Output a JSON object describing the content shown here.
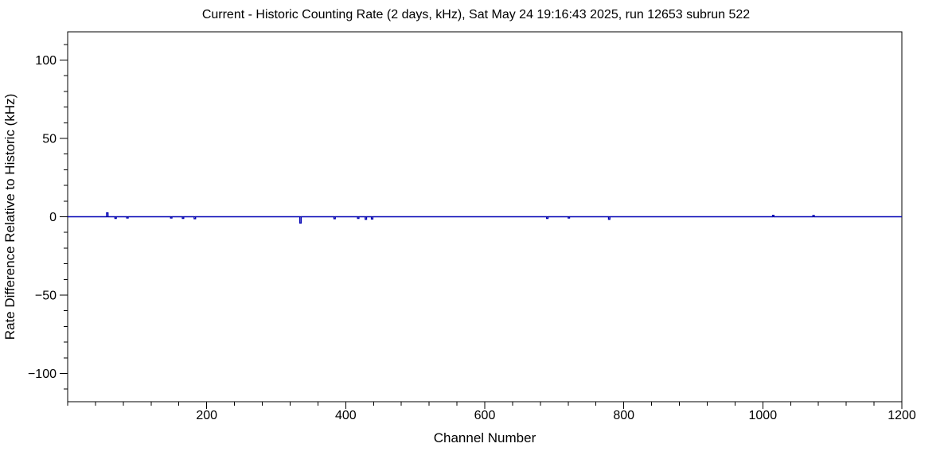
{
  "page": {
    "background": "#ffffff",
    "frame_color": "#000000"
  },
  "chart_data": {
    "type": "line",
    "title": "Current - Historic Counting Rate (2 days, kHz), Sat May 24 19:16:43 2025, run 12653 subrun 522",
    "xlabel": "Channel Number",
    "ylabel": "Rate Difference Relative to Historic (kHz)",
    "xlim": [
      0,
      1200
    ],
    "ylim": [
      -118,
      118
    ],
    "x_major_ticks": [
      200,
      400,
      600,
      800,
      1000,
      1200
    ],
    "x_minor_step": 40,
    "y_major_ticks": [
      -100,
      -50,
      0,
      50,
      100
    ],
    "y_minor_step": 10,
    "grid": false,
    "legend": false,
    "zero_line_color": "#000000",
    "series": [
      {
        "name": "rate-difference-vs-channel",
        "style": "histogram-step",
        "color": "#0000b4",
        "baseline": 0,
        "spikes": [
          {
            "x": 57,
            "y": 2.5
          },
          {
            "x": 69,
            "y": -1.0
          },
          {
            "x": 86,
            "y": -0.8
          },
          {
            "x": 149,
            "y": -0.8
          },
          {
            "x": 166,
            "y": -1.0
          },
          {
            "x": 183,
            "y": -1.2
          },
          {
            "x": 335,
            "y": -4.0
          },
          {
            "x": 384,
            "y": -1.2
          },
          {
            "x": 418,
            "y": -1.0
          },
          {
            "x": 429,
            "y": -1.6
          },
          {
            "x": 438,
            "y": -1.4
          },
          {
            "x": 690,
            "y": -1.0
          },
          {
            "x": 721,
            "y": -0.8
          },
          {
            "x": 779,
            "y": -1.6
          },
          {
            "x": 1015,
            "y": 0.9
          },
          {
            "x": 1073,
            "y": 0.8
          }
        ]
      }
    ]
  }
}
